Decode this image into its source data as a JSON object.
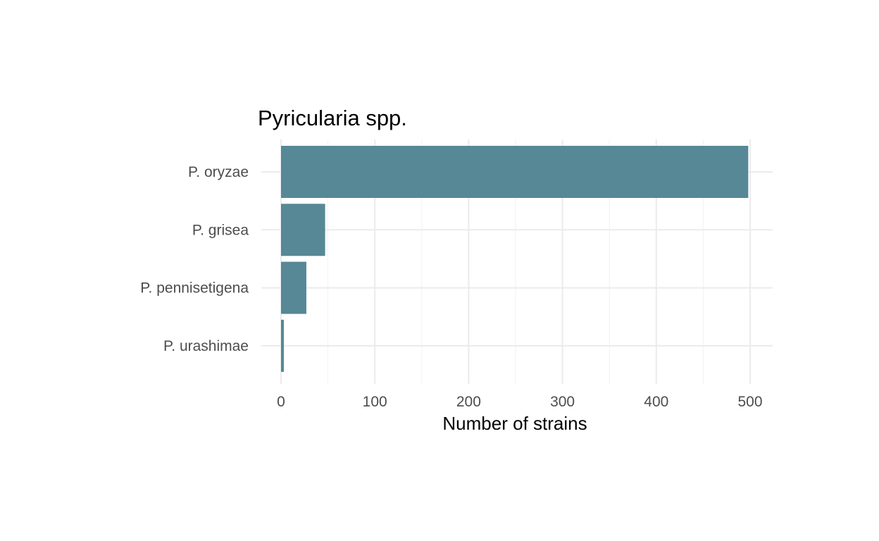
{
  "chart_data": {
    "type": "bar",
    "orientation": "horizontal",
    "title": "Pyricularia spp.",
    "xlabel": "Number of strains",
    "ylabel": "",
    "categories": [
      "P. oryzae",
      "P. grisea",
      "P. pennisetigena",
      "P. urashimae"
    ],
    "values": [
      498,
      47,
      27,
      3
    ],
    "xlim": [
      0,
      525
    ],
    "x_ticks": [
      0,
      100,
      200,
      300,
      400,
      500
    ],
    "x_tick_labels": [
      "0",
      "100",
      "200",
      "300",
      "400",
      "500"
    ],
    "bar_color": "#568896",
    "grid": true,
    "legend": "none"
  }
}
